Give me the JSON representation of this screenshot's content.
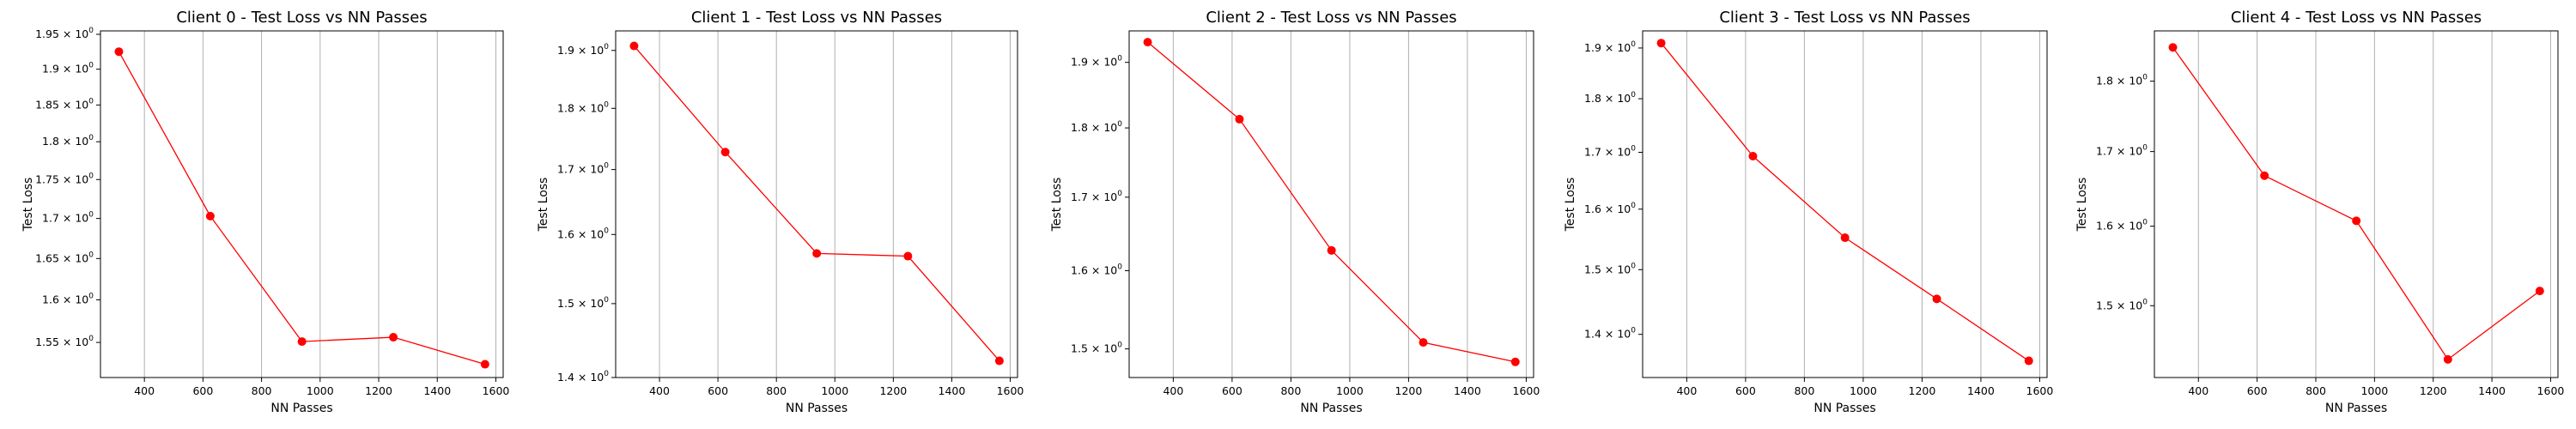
{
  "chart_data": [
    {
      "type": "line",
      "title": "Client 0 - Test Loss vs NN Passes",
      "xlabel": "NN Passes",
      "ylabel": "Test Loss",
      "yscale": "log",
      "grid": "x-major",
      "xlim": [
        250,
        1625
      ],
      "ylim": [
        1.51,
        1.955
      ],
      "xticks": [
        400,
        600,
        800,
        1000,
        1200,
        1400,
        1600
      ],
      "yticks": [
        {
          "value": 1.55,
          "mant": "1.55",
          "exp": "0"
        },
        {
          "value": 1.6,
          "mant": "1.6",
          "exp": "0"
        },
        {
          "value": 1.65,
          "mant": "1.65",
          "exp": "0"
        },
        {
          "value": 1.7,
          "mant": "1.7",
          "exp": "0"
        },
        {
          "value": 1.75,
          "mant": "1.75",
          "exp": "0"
        },
        {
          "value": 1.8,
          "mant": "1.8",
          "exp": "0"
        },
        {
          "value": 1.85,
          "mant": "1.85",
          "exp": "0"
        },
        {
          "value": 1.9,
          "mant": "1.9",
          "exp": "0"
        },
        {
          "value": 1.95,
          "mant": "1.95",
          "exp": "0"
        }
      ],
      "tick_base": "10",
      "color": "#ff0000",
      "x": [
        313,
        625,
        938,
        1250,
        1563
      ],
      "y": [
        1.925,
        1.703,
        1.551,
        1.556,
        1.525
      ]
    },
    {
      "type": "line",
      "title": "Client 1 - Test Loss vs NN Passes",
      "xlabel": "NN Passes",
      "ylabel": "Test Loss",
      "yscale": "log",
      "grid": "x-major",
      "xlim": [
        250,
        1625
      ],
      "ylim": [
        1.4,
        1.935
      ],
      "xticks": [
        400,
        600,
        800,
        1000,
        1200,
        1400,
        1600
      ],
      "yticks": [
        {
          "value": 1.4,
          "mant": "1.4",
          "exp": "0"
        },
        {
          "value": 1.5,
          "mant": "1.5",
          "exp": "0"
        },
        {
          "value": 1.6,
          "mant": "1.6",
          "exp": "0"
        },
        {
          "value": 1.7,
          "mant": "1.7",
          "exp": "0"
        },
        {
          "value": 1.8,
          "mant": "1.8",
          "exp": "0"
        },
        {
          "value": 1.9,
          "mant": "1.9",
          "exp": "0"
        }
      ],
      "tick_base": "10",
      "color": "#ff0000",
      "x": [
        313,
        625,
        938,
        1250,
        1563
      ],
      "y": [
        1.908,
        1.728,
        1.572,
        1.568,
        1.422
      ]
    },
    {
      "type": "line",
      "title": "Client 2 - Test Loss vs NN Passes",
      "xlabel": "NN Passes",
      "ylabel": "Test Loss",
      "yscale": "log",
      "grid": "x-major",
      "xlim": [
        250,
        1625
      ],
      "ylim": [
        1.465,
        1.95
      ],
      "xticks": [
        400,
        600,
        800,
        1000,
        1200,
        1400,
        1600
      ],
      "yticks": [
        {
          "value": 1.5,
          "mant": "1.5",
          "exp": "0"
        },
        {
          "value": 1.6,
          "mant": "1.6",
          "exp": "0"
        },
        {
          "value": 1.7,
          "mant": "1.7",
          "exp": "0"
        },
        {
          "value": 1.8,
          "mant": "1.8",
          "exp": "0"
        },
        {
          "value": 1.9,
          "mant": "1.9",
          "exp": "0"
        }
      ],
      "tick_base": "10",
      "color": "#ff0000",
      "x": [
        313,
        625,
        938,
        1250,
        1563
      ],
      "y": [
        1.932,
        1.813,
        1.627,
        1.508,
        1.484
      ]
    },
    {
      "type": "line",
      "title": "Client 3 - Test Loss vs NN Passes",
      "xlabel": "NN Passes",
      "ylabel": "Test Loss",
      "yscale": "log",
      "grid": "x-major",
      "xlim": [
        250,
        1625
      ],
      "ylim": [
        1.337,
        1.935
      ],
      "xticks": [
        400,
        600,
        800,
        1000,
        1200,
        1400,
        1600
      ],
      "yticks": [
        {
          "value": 1.4,
          "mant": "1.4",
          "exp": "0"
        },
        {
          "value": 1.5,
          "mant": "1.5",
          "exp": "0"
        },
        {
          "value": 1.6,
          "mant": "1.6",
          "exp": "0"
        },
        {
          "value": 1.7,
          "mant": "1.7",
          "exp": "0"
        },
        {
          "value": 1.8,
          "mant": "1.8",
          "exp": "0"
        },
        {
          "value": 1.9,
          "mant": "1.9",
          "exp": "0"
        }
      ],
      "tick_base": "10",
      "color": "#ff0000",
      "x": [
        313,
        625,
        938,
        1250,
        1563
      ],
      "y": [
        1.91,
        1.693,
        1.552,
        1.454,
        1.361
      ]
    },
    {
      "type": "line",
      "title": "Client 4 - Test Loss vs NN Passes",
      "xlabel": "NN Passes",
      "ylabel": "Test Loss",
      "yscale": "log",
      "grid": "x-major",
      "xlim": [
        250,
        1625
      ],
      "ylim": [
        1.415,
        1.875
      ],
      "xticks": [
        400,
        600,
        800,
        1000,
        1200,
        1400,
        1600
      ],
      "yticks": [
        {
          "value": 1.5,
          "mant": "1.5",
          "exp": "0"
        },
        {
          "value": 1.6,
          "mant": "1.6",
          "exp": "0"
        },
        {
          "value": 1.7,
          "mant": "1.7",
          "exp": "0"
        },
        {
          "value": 1.8,
          "mant": "1.8",
          "exp": "0"
        }
      ],
      "tick_base": "10",
      "color": "#ff0000",
      "x": [
        313,
        625,
        938,
        1250,
        1563
      ],
      "y": [
        1.85,
        1.667,
        1.607,
        1.436,
        1.518
      ]
    }
  ]
}
